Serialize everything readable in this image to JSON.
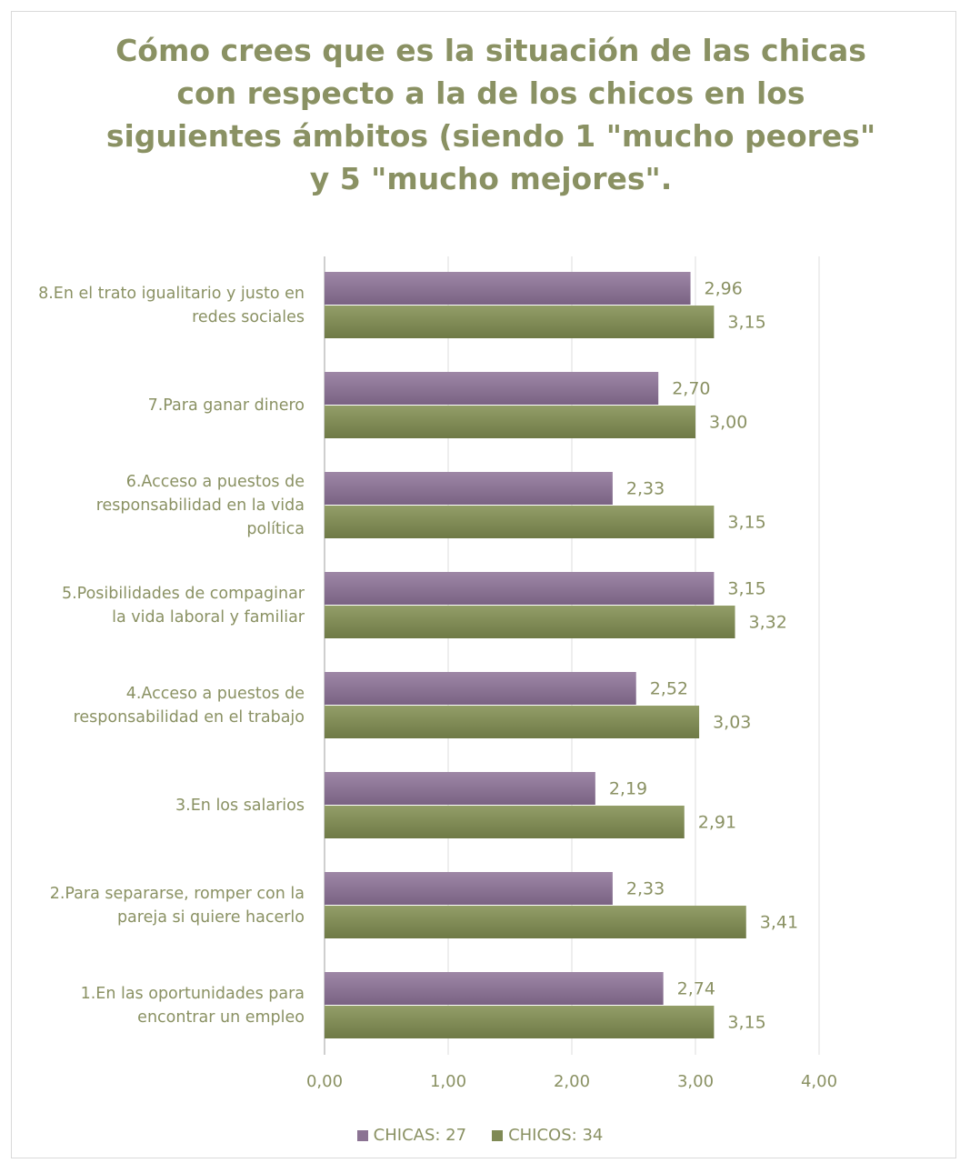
{
  "chart_data": {
    "type": "bar",
    "orientation": "horizontal",
    "title_lines": [
      "Cómo crees que es la situación de las chicas",
      "con respecto a la de los chicos en los",
      "siguientes ámbitos (siendo 1 \"mucho peores\"",
      "y 5 \"mucho mejores\"."
    ],
    "categories": [
      [
        "8.En el trato igualitario y justo en",
        "redes sociales"
      ],
      [
        "7.Para ganar dinero"
      ],
      [
        "6.Acceso a puestos de",
        "responsabilidad en la vida",
        "política"
      ],
      [
        "5.Posibilidades de compaginar",
        "la vida laboral y familiar"
      ],
      [
        "4.Acceso a puestos de",
        "responsabilidad en el trabajo"
      ],
      [
        "3.En los salarios"
      ],
      [
        "2.Para separarse, romper con la",
        "pareja si quiere hacerlo"
      ],
      [
        "1.En las oportunidades para",
        "encontrar un empleo"
      ]
    ],
    "series": [
      {
        "name": "CHICAS: 27",
        "color": "#8b7393",
        "values": [
          2.96,
          2.7,
          2.33,
          3.15,
          2.52,
          2.19,
          2.33,
          2.74
        ],
        "labels": [
          "2,96",
          "2,70",
          "2,33",
          "3,15",
          "2,52",
          "2,19",
          "2,33",
          "2,74"
        ]
      },
      {
        "name": "CHICOS: 34",
        "color": "#7f8a55",
        "values": [
          3.15,
          3.0,
          3.15,
          3.32,
          3.03,
          2.91,
          3.41,
          3.15
        ],
        "labels": [
          "3,15",
          "3,00",
          "3,15",
          "3,32",
          "3,03",
          "2,91",
          "3,41",
          "3,15"
        ]
      }
    ],
    "xlim": [
      0,
      4
    ],
    "xticks": [
      0,
      1,
      2,
      3,
      4
    ],
    "xtick_labels": [
      "0,00",
      "1,00",
      "2,00",
      "3,00",
      "4,00"
    ],
    "grid": true,
    "legend_position": "bottom",
    "text_color": "#8a9163"
  }
}
